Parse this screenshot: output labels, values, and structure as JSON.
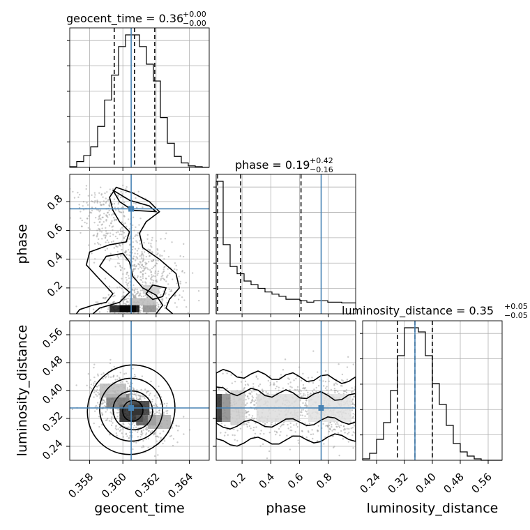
{
  "chart_data": {
    "type": "corner",
    "parameters": [
      "geocent_time",
      "phase",
      "luminosity_distance"
    ],
    "titles": [
      {
        "param": "geocent_time",
        "label": "geocent_time = 0.36",
        "plus": "+0.00",
        "minus": "−0.00"
      },
      {
        "param": "phase",
        "label": "phase = 0.19",
        "plus": "+0.42",
        "minus": "−0.16"
      },
      {
        "param": "luminosity_distance",
        "label": "luminosity_distance = 0.35",
        "plus": "+0.05",
        "minus": "−0.05"
      }
    ],
    "axes": {
      "geocent_time": {
        "range": [
          0.3568,
          0.3652
        ],
        "ticks": [
          0.358,
          0.36,
          0.362,
          0.364
        ],
        "tick_labels": [
          "0.358",
          "0.360",
          "0.362",
          "0.364"
        ]
      },
      "phase": {
        "range": [
          0.02,
          0.99
        ],
        "ticks": [
          0.2,
          0.4,
          0.6,
          0.8
        ],
        "tick_labels": [
          "0.2",
          "0.4",
          "0.6",
          "0.8"
        ]
      },
      "luminosity_distance": {
        "range": [
          0.2,
          0.6
        ],
        "ticks": [
          0.24,
          0.32,
          0.4,
          0.48,
          0.56
        ],
        "tick_labels": [
          "0.24",
          "0.32",
          "0.40",
          "0.48",
          "0.56"
        ]
      }
    },
    "truths": {
      "geocent_time": 0.3605,
      "phase": 0.75,
      "luminosity_distance": 0.35
    },
    "quantiles": {
      "geocent_time": [
        0.35948,
        0.3607,
        0.36192
      ],
      "phase": [
        0.03,
        0.19,
        0.61
      ],
      "luminosity_distance": [
        0.3,
        0.35,
        0.4
      ]
    },
    "hist_1d": {
      "geocent_time": {
        "edges": [
          0.3568,
          0.35722,
          0.35764,
          0.35806,
          0.35848,
          0.3589,
          0.35932,
          0.35974,
          0.36016,
          0.36058,
          0.361,
          0.36142,
          0.36184,
          0.36226,
          0.36268,
          0.3631,
          0.36352,
          0.36394,
          0.36436,
          0.36478,
          0.3652
        ],
        "counts": [
          1,
          8,
          16,
          28,
          56,
          92,
          126,
          165,
          181,
          181,
          165,
          141,
          118,
          68,
          33,
          15,
          6,
          2,
          1,
          0
        ]
      },
      "phase": {
        "edges": [
          0.02,
          0.0685,
          0.117,
          0.1655,
          0.214,
          0.2625,
          0.311,
          0.3595,
          0.408,
          0.4565,
          0.505,
          0.5535,
          0.602,
          0.6505,
          0.699,
          0.7475,
          0.796,
          0.8445,
          0.893,
          0.9415,
          0.99
        ],
        "counts": [
          182,
          95,
          65,
          55,
          45,
          40,
          35,
          30,
          27,
          24,
          20,
          20,
          18,
          16,
          18,
          18,
          16,
          16,
          15,
          15
        ]
      },
      "luminosity_distance": {
        "edges": [
          0.2,
          0.22,
          0.24,
          0.26,
          0.28,
          0.3,
          0.32,
          0.34,
          0.36,
          0.38,
          0.4,
          0.42,
          0.44,
          0.46,
          0.48,
          0.5,
          0.52,
          0.54,
          0.56,
          0.58,
          0.6
        ],
        "counts": [
          1,
          5,
          15,
          27,
          50,
          75,
          95,
          95,
          92,
          75,
          55,
          40,
          25,
          12,
          6,
          3,
          1,
          0,
          0,
          0
        ]
      }
    }
  }
}
